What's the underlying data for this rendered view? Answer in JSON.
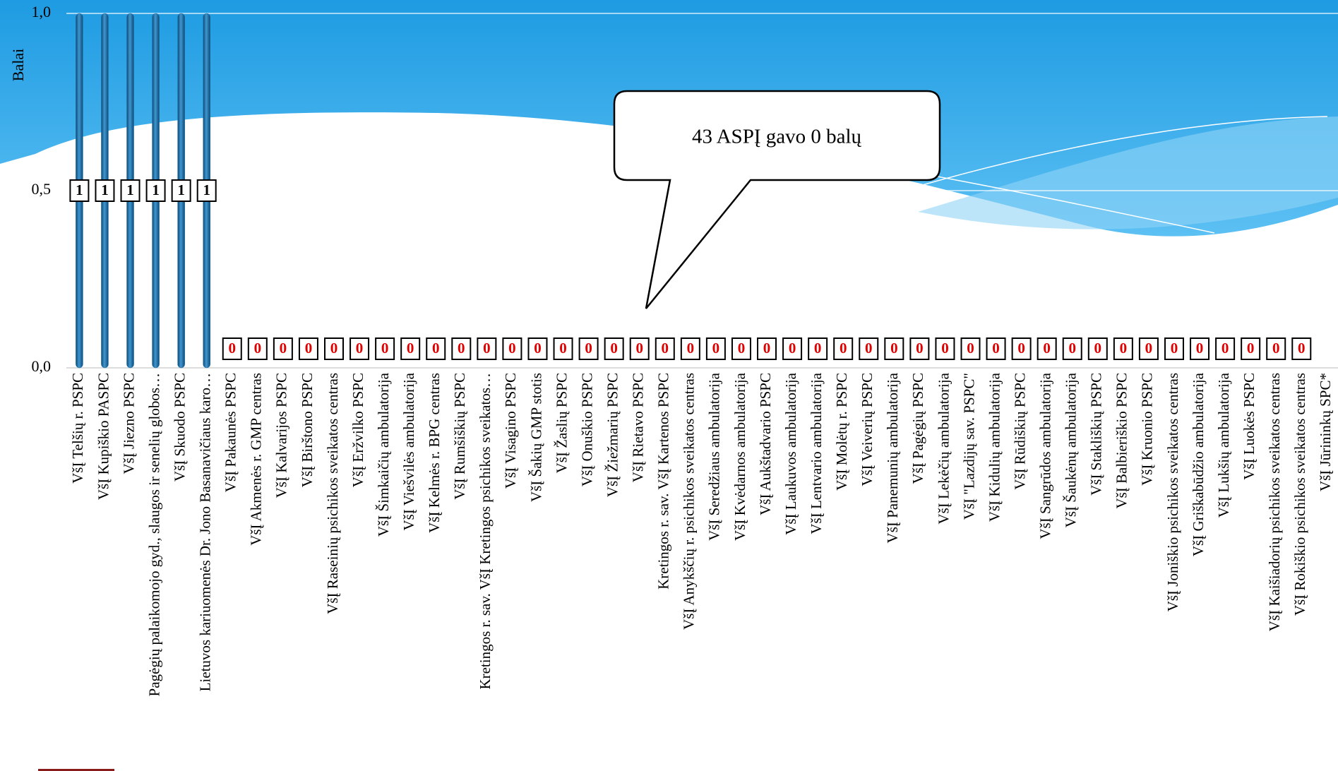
{
  "chart_data": {
    "type": "bar",
    "y_label": "Balai",
    "annotation": "43 ASPĮ gavo 0 balų",
    "categories": [
      "VšĮ Telšių r. PSPC",
      "VšĮ Kupiškio PASPC",
      "VšĮ Jiezno PSPC",
      "Pagėgių palaikomojo gyd., slaugos ir senelių globos…",
      "VšĮ Skuodo PSPC",
      "Lietuvos kariuomenės Dr. Jono Basanavičiaus karo…",
      "VšĮ Pakaunės PSPC",
      "VšĮ Akmenės r. GMP centras",
      "VšĮ Kalvarijos PSPC",
      "VšĮ Birštono PSPC",
      "VšĮ Raseinių psichikos sveikatos centras",
      "VšĮ Eržvilko PSPC",
      "VšĮ Šimkaičių ambulatorija",
      "VšĮ Viešvilės ambulatorija",
      "VšĮ Kelmės r. BPG centras",
      "VšĮ Rumšiškių PSPC",
      "Kretingos r. sav. VšĮ Kretingos psichikos sveikatos…",
      "VšĮ Visagino PSPC",
      "VšĮ Šakių GMP stotis",
      "VšĮ Žaslių PSPC",
      "VšĮ Onuškio PSPC",
      "VšĮ Žiežmarių PSPC",
      "VšĮ Rietavo PSPC",
      "Kretingos r. sav. VšĮ Kartenos PSPC",
      "VšĮ Anykščių r. psichikos sveikatos centras",
      "VšĮ Seredžiaus ambulatorija",
      "VšĮ Kvėdarnos ambulatorija",
      "VšĮ Aukštadvario PSPC",
      "VšĮ Laukuvos ambulatorija",
      "VšĮ Lentvario ambulatorija",
      "VšĮ Molėtų r. PSPC",
      "VšĮ Veiverių PSPC",
      "VšĮ Panemunių ambulatorija",
      "VšĮ Pagėgių PSPC",
      "VšĮ Lekėčių ambulatorija",
      "VšĮ \"Lazdijų sav. PSPC\"",
      "VšĮ Kidulių ambulatorija",
      "VšĮ Rūdiškių PSPC",
      "VšĮ Sangrūdos ambulatorija",
      "VšĮ Šaukėnų ambulatorija",
      "VšĮ Stakliškių PSPC",
      "VšĮ Balbieriškio PSPC",
      "VšĮ Kruonio PSPC",
      "VšĮ Joniškio psichikos sveikatos centras",
      "VšĮ Griškabūdžio ambulatorija",
      "VšĮ Lukšių ambulatorija",
      "VšĮ Luokės PSPC",
      "VšĮ Kaišiadorių psichikos sveikatos centras",
      "VšĮ Rokiškio psichikos sveikatos centras",
      "VšĮ Jūrininkų SPC*"
    ],
    "values": [
      1,
      1,
      1,
      1,
      1,
      1,
      0,
      0,
      0,
      0,
      0,
      0,
      0,
      0,
      0,
      0,
      0,
      0,
      0,
      0,
      0,
      0,
      0,
      0,
      0,
      0,
      0,
      0,
      0,
      0,
      0,
      0,
      0,
      0,
      0,
      0,
      0,
      0,
      0,
      0,
      0,
      0,
      0,
      0,
      0,
      0,
      0,
      0,
      0,
      null
    ],
    "color": "#1f6fa6",
    "ylim": [
      0,
      1
    ],
    "yticks": [
      {
        "value": 0,
        "label": "0,0"
      },
      {
        "value": 0.5,
        "label": "0,5"
      },
      {
        "value": 1,
        "label": "1,0"
      }
    ],
    "grid": true
  }
}
